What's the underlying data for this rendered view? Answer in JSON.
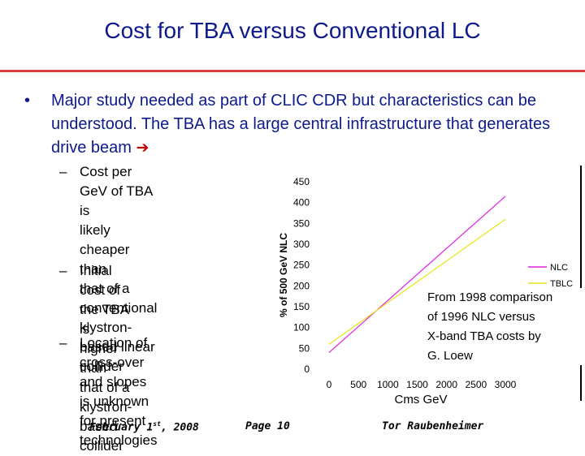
{
  "slide": {
    "title": "Cost for TBA versus Conventional LC",
    "bullet": "Major study needed as part of CLIC CDR but characteristics can be understood.  The TBA has a large central infrastructure that generates drive beam",
    "sub_bullets": [
      [
        "Cost per GeV of TBA is",
        "likely cheaper than",
        "that of a conventional",
        "klystron-based linear",
        "collider"
      ],
      [
        "Initial cost of the TBA is",
        "higher than that of a",
        "klystron-based collider"
      ],
      [
        "Location of cross-over",
        "and slopes is unknown",
        "for present technologies"
      ]
    ],
    "note": [
      "From 1998 comparison",
      "of 1996 NLC versus",
      "X-band TBA costs by",
      "G. Loew"
    ],
    "footer": {
      "date": "February 1st, 2008",
      "page": "Page 10",
      "author": "Tor Raubenheimer"
    },
    "colors": {
      "title": "#0d1a8c",
      "rule": "#d94040",
      "arrow": "#c00000"
    },
    "icons": {
      "bullet": "bullet-dot-icon",
      "arrow": "right-arrow-icon"
    }
  },
  "chart_data": {
    "type": "line",
    "xlabel": "Cms GeV",
    "ylabel": "% of 500 GeV NLC",
    "xlim": [
      0,
      3000
    ],
    "ylim": [
      0,
      450
    ],
    "xticks": [
      "0",
      "500",
      "1000",
      "1500",
      "2000",
      "2500",
      "3000"
    ],
    "yticks": [
      "0",
      "50",
      "100",
      "150",
      "200",
      "250",
      "300",
      "350",
      "400",
      "450"
    ],
    "legend": "right",
    "grid": false,
    "series": [
      {
        "name": "NLC",
        "color": "#e020e0",
        "x": [
          0,
          3000
        ],
        "y": [
          40,
          415
        ]
      },
      {
        "name": "TBLC",
        "color": "#e6e619",
        "x": [
          0,
          3000
        ],
        "y": [
          60,
          360
        ]
      }
    ]
  }
}
